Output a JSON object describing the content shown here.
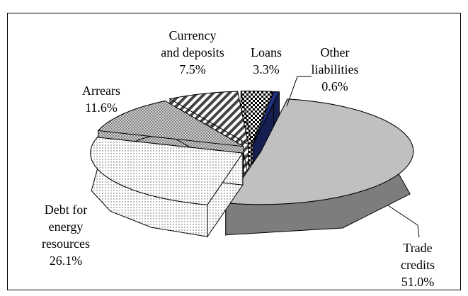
{
  "chart_data": {
    "type": "pie",
    "categories": [
      "Trade credits",
      "Debt for\nenergy\nresources",
      "Arrears",
      "Currency\nand deposits",
      "Loans",
      "Other\nliabilities"
    ],
    "values": [
      51.0,
      26.1,
      11.6,
      7.5,
      3.3,
      0.6
    ],
    "value_labels": [
      "51.0%",
      "26.1%",
      "11.6%",
      "7.5%",
      "3.3%",
      "0.6%"
    ],
    "colors": [
      "#c0c0c0",
      "#ffffff",
      "#c8c8c8",
      "#ffffff",
      "#ffffff",
      "#1f2f7a"
    ],
    "patterns": [
      "solid",
      "dots",
      "crosshatch",
      "stripes",
      "checker",
      "solid"
    ]
  }
}
